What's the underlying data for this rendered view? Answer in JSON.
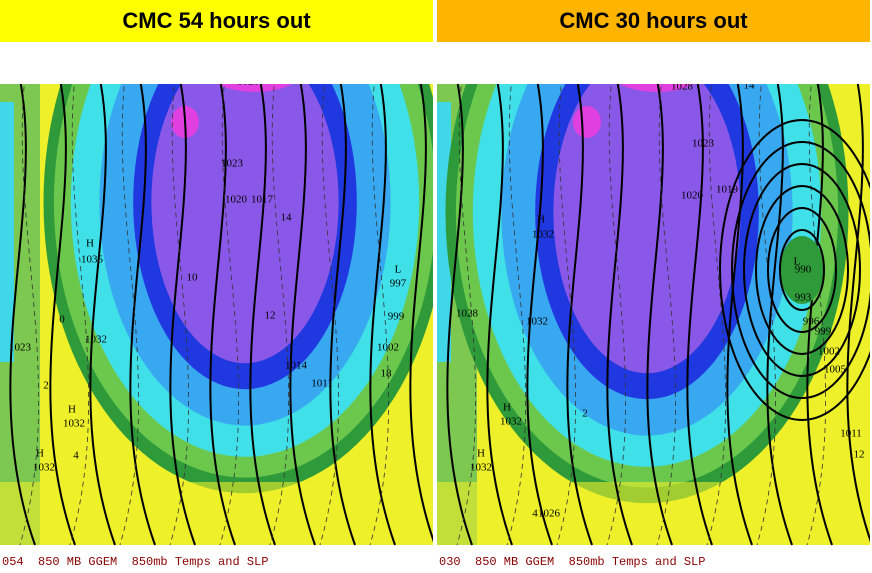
{
  "panels": [
    {
      "title": "CMC 54 hours out",
      "footer": "054  850 MB GGEM  850mb Temps and SLP",
      "labels": [
        "H",
        "1026",
        "1025",
        "1023",
        "1020",
        "1017",
        "14",
        "H",
        "1035",
        "1032",
        "1023",
        "H",
        "1032",
        "H",
        "1032",
        "L",
        "997",
        "999",
        "1002",
        "1011",
        "1014",
        "18",
        "10",
        "12",
        "2",
        "4",
        "0"
      ]
    },
    {
      "title": "CMC 30 hours out",
      "footer": "030  850 MB GGEM  850mb Temps and SLP",
      "labels": [
        "H",
        "1028",
        "14",
        "1023",
        "1020",
        "1019",
        "H",
        "1032",
        "1032",
        "H",
        "1032",
        "H",
        "1032",
        "1026",
        "L",
        "990",
        "993",
        "996",
        "999",
        "1002",
        "1005",
        "1011",
        "1028",
        "2",
        "12",
        "4"
      ]
    }
  ]
}
